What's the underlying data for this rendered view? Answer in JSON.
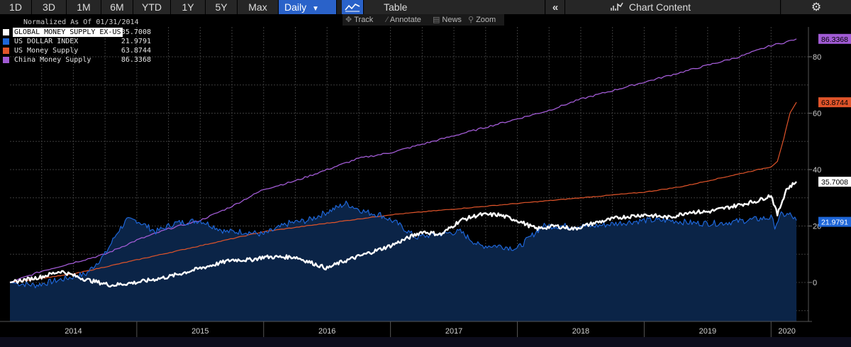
{
  "toolbar": {
    "ranges": [
      "1D",
      "3D",
      "1M",
      "6M",
      "YTD",
      "1Y",
      "5Y",
      "Max"
    ],
    "frequency": "Daily",
    "table_label": "Table",
    "collapse_icon": "double-chevron-left-icon",
    "chart_content_label": "Chart Content",
    "settings_icon": "gear-icon"
  },
  "subbar": {
    "items": [
      "Track",
      "Annotate",
      "News",
      "Zoom"
    ]
  },
  "legend": {
    "title": "Normalized As Of 01/31/2014"
  },
  "colors": {
    "global": "#ffffff",
    "usd": "#1e66d8",
    "us_money": "#e0542a",
    "china": "#a15bd4",
    "area": "#0b2447",
    "grid": "#3c3c3c"
  },
  "chart_data": {
    "type": "line",
    "title": "",
    "normalized_as_of": "01/31/2014",
    "xlabel": "",
    "ylabel": "",
    "x_ticks": [
      "2014",
      "2015",
      "2016",
      "2017",
      "2018",
      "2019",
      "2020"
    ],
    "x_range": [
      2014.0,
      2020.25
    ],
    "ylim": [
      -10,
      90
    ],
    "y_ticks": [
      "0",
      "20",
      "40",
      "60",
      "80"
    ],
    "series": [
      {
        "name": "GLOBAL MONEY SUPPLY EX-US",
        "last": "35.7008",
        "color": "#ffffff",
        "x": [
          2014.0,
          2014.25,
          2014.4,
          2014.6,
          2014.8,
          2015.0,
          2015.25,
          2015.5,
          2015.75,
          2015.9,
          2016.0,
          2016.25,
          2016.5,
          2016.6,
          2016.8,
          2017.0,
          2017.15,
          2017.25,
          2017.4,
          2017.55,
          2017.7,
          2017.85,
          2018.0,
          2018.15,
          2018.3,
          2018.45,
          2018.6,
          2018.8,
          2019.0,
          2019.2,
          2019.35,
          2019.5,
          2019.7,
          2019.9,
          2020.0,
          2020.05,
          2020.12,
          2020.2
        ],
        "values": [
          0,
          2,
          4,
          1,
          -1,
          0,
          2,
          5,
          8,
          8,
          9,
          9,
          5,
          7,
          10,
          13,
          16,
          18,
          17,
          22,
          24,
          24,
          22,
          19,
          20,
          19,
          21,
          23,
          24,
          23,
          25,
          25,
          27,
          29,
          31,
          24,
          33,
          35.7
        ]
      },
      {
        "name": "US DOLLAR INDEX",
        "last": "21.9791",
        "color": "#1e66d8",
        "x": [
          2014.0,
          2014.2,
          2014.4,
          2014.6,
          2014.75,
          2014.85,
          2014.92,
          2015.0,
          2015.15,
          2015.3,
          2015.5,
          2015.7,
          2015.85,
          2016.0,
          2016.2,
          2016.35,
          2016.5,
          2016.65,
          2016.8,
          2016.92,
          2017.05,
          2017.2,
          2017.35,
          2017.55,
          2017.7,
          2017.85,
          2018.0,
          2018.2,
          2018.4,
          2018.6,
          2018.8,
          2019.0,
          2019.2,
          2019.4,
          2019.6,
          2019.8,
          2020.0,
          2020.03,
          2020.08,
          2020.15,
          2020.2
        ],
        "values": [
          0,
          -1,
          1,
          3,
          10,
          18,
          22,
          22,
          18,
          21,
          22,
          18,
          18,
          17,
          21,
          22,
          25,
          28,
          25,
          24,
          21,
          16,
          17,
          18,
          13,
          13,
          12,
          20,
          20,
          20,
          21,
          22,
          22,
          21,
          21,
          22,
          23,
          20,
          24,
          24,
          21.98
        ]
      },
      {
        "name": "US Money Supply",
        "last": "63.8744",
        "color": "#e0542a",
        "x": [
          2014.0,
          2014.5,
          2015.0,
          2015.5,
          2016.0,
          2016.5,
          2017.0,
          2017.5,
          2018.0,
          2018.5,
          2019.0,
          2019.3,
          2019.6,
          2019.9,
          2020.0,
          2020.05,
          2020.1,
          2020.15,
          2020.2
        ],
        "values": [
          0,
          3,
          8,
          13,
          18,
          21,
          24,
          26,
          28,
          30,
          32,
          34,
          37,
          40,
          41,
          43,
          51,
          60,
          63.87
        ]
      },
      {
        "name": "China Money Supply",
        "last": "86.3368",
        "color": "#a15bd4",
        "x": [
          2014.0,
          2014.25,
          2014.5,
          2014.75,
          2015.0,
          2015.25,
          2015.5,
          2015.75,
          2016.0,
          2016.25,
          2016.5,
          2016.75,
          2017.0,
          2017.25,
          2017.5,
          2017.75,
          2018.0,
          2018.25,
          2018.5,
          2018.75,
          2019.0,
          2019.25,
          2019.5,
          2019.75,
          2020.0,
          2020.1,
          2020.2
        ],
        "values": [
          0,
          4,
          7,
          10,
          15,
          19,
          22,
          27,
          33,
          36,
          40,
          44,
          46,
          49,
          52,
          55,
          58,
          61,
          65,
          68,
          71,
          74,
          77,
          80,
          84,
          85,
          86.34
        ]
      }
    ]
  }
}
